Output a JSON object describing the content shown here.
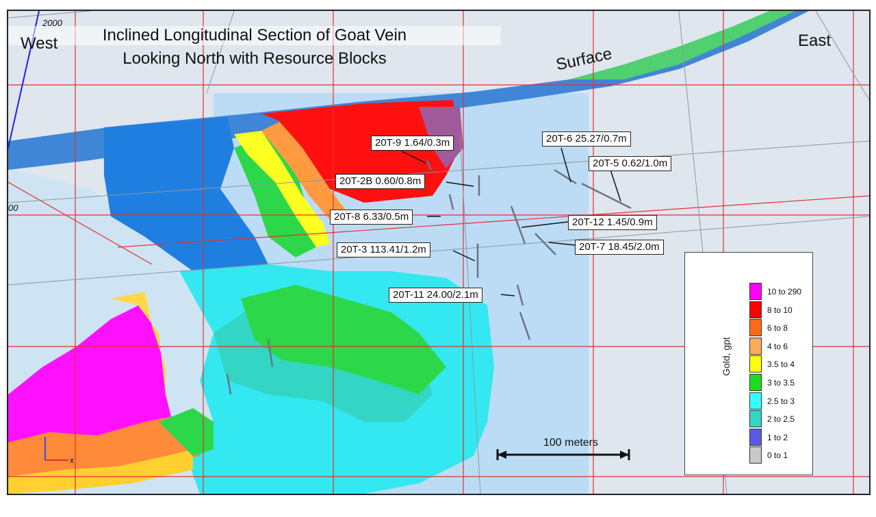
{
  "title_line1": "Inclined Longitudinal Section of Goat Vein",
  "title_line2": "Looking North with Resource Blocks",
  "west_label": "West",
  "east_label": "East",
  "surface_label": "Surface",
  "grid_label_2000": "2000",
  "grid_label_00": "00",
  "scale_label": "100 meters",
  "drill_labels": [
    {
      "id": "label-20t-9",
      "text": "20T-9 1.64/0.3m"
    },
    {
      "id": "label-20t-6",
      "text": "20T-6 25.27/0.7m"
    },
    {
      "id": "label-20t-5",
      "text": "20T-5 0.62/1.0m"
    },
    {
      "id": "label-20t-2b",
      "text": "20T-2B 0.60/0.8m"
    },
    {
      "id": "label-20t-8",
      "text": "20T-8 6.33/0.5m"
    },
    {
      "id": "label-20t-12",
      "text": "20T-12 1.45/0.9m"
    },
    {
      "id": "label-20t-3",
      "text": "20T-3 113.41/1.2m"
    },
    {
      "id": "label-20t-7",
      "text": "20T-7 18.45/2.0m"
    },
    {
      "id": "label-20t-11",
      "text": "20T-11 24.00/2.1m"
    }
  ],
  "legend": {
    "title": "Gold, gpt",
    "items": [
      {
        "label": "10 to 290",
        "color": "#ff00ff"
      },
      {
        "label": "8 to 10",
        "color": "#ff0000"
      },
      {
        "label": "6 to 8",
        "color": "#ff6a1a"
      },
      {
        "label": "4 to 6",
        "color": "#ffaa5a"
      },
      {
        "label": "3.5 to 4",
        "color": "#ffff00"
      },
      {
        "label": "3 to 3.5",
        "color": "#1edc1e"
      },
      {
        "label": "2.5 to 3",
        "color": "#33ffff"
      },
      {
        "label": "2 to 2.5",
        "color": "#33d6c4"
      },
      {
        "label": "1 to 2",
        "color": "#5a5ae8"
      },
      {
        "label": "0 to 1",
        "color": "#c8c8c8"
      }
    ]
  },
  "axis_x_label": "x"
}
